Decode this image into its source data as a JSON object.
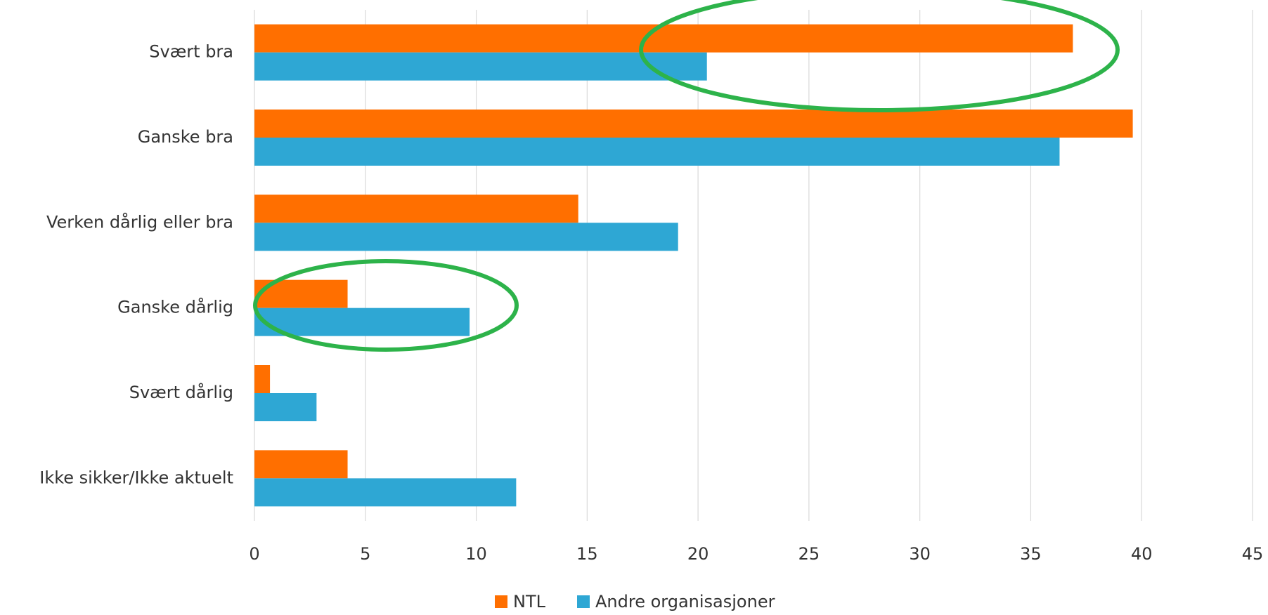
{
  "chart_data": {
    "type": "hbar",
    "categories": [
      "Svært bra",
      "Ganske bra",
      "Verken dårlig eller bra",
      "Ganske dårlig",
      "Svært dårlig",
      "Ikke sikker/Ikke aktuelt"
    ],
    "series": [
      {
        "name": "NTL",
        "color": "#ff6f00",
        "values": [
          36.9,
          39.6,
          14.6,
          4.2,
          0.7,
          4.2
        ]
      },
      {
        "name": "Andre organisasjoner",
        "color": "#2ea7d4",
        "values": [
          20.4,
          36.3,
          19.1,
          9.7,
          2.8,
          11.8
        ]
      }
    ],
    "xlim": [
      0,
      45
    ],
    "xticks": [
      0,
      5,
      10,
      15,
      20,
      25,
      30,
      35,
      40,
      45
    ],
    "grid": true,
    "legend": "bottom"
  }
}
